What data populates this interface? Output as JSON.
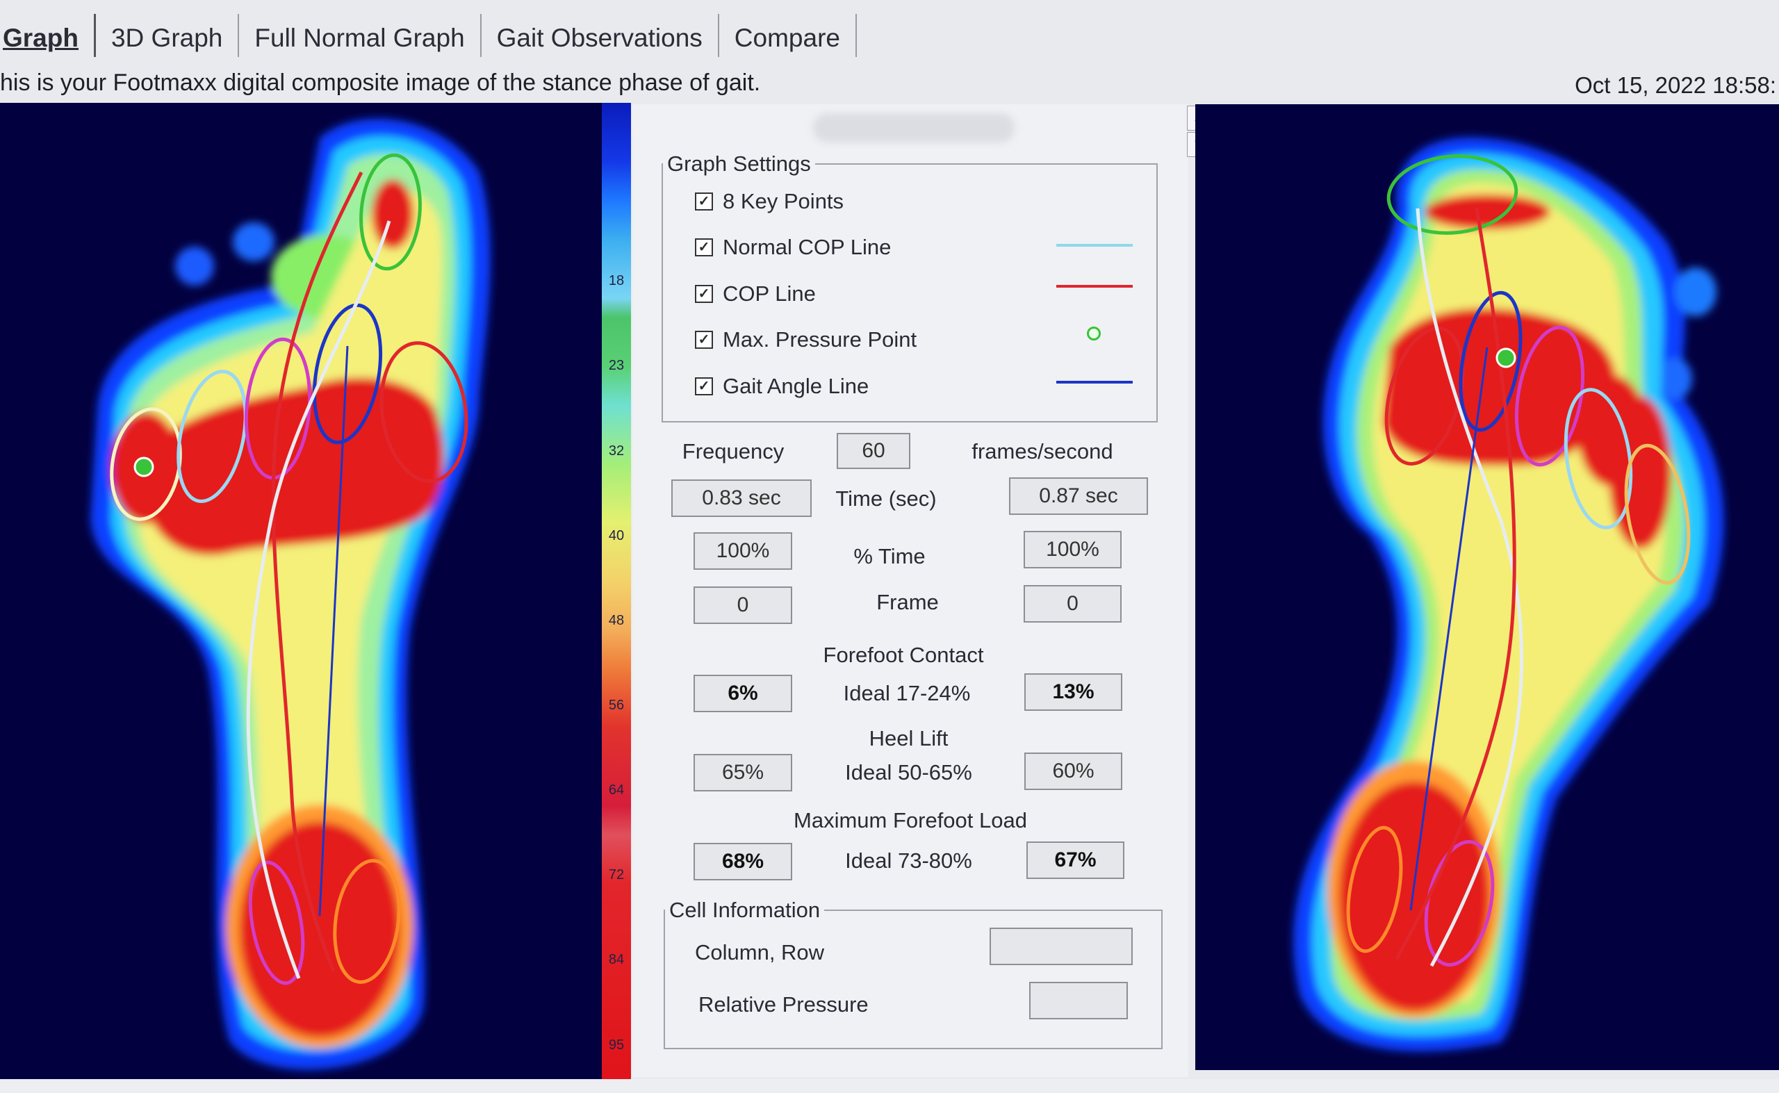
{
  "tabs": [
    "Graph",
    "3D Graph",
    "Full Normal Graph",
    "Gait Observations",
    "Compare"
  ],
  "subtitle": "his is your Footmaxx digital composite image of the stance phase of gait.",
  "datetime": "Oct 15, 2022 18:58:",
  "legend_ticks": [
    "18",
    "23",
    "32",
    "40",
    "48",
    "56",
    "64",
    "72",
    "84",
    "95"
  ],
  "graph_settings": {
    "title": "Graph Settings",
    "items": [
      {
        "label": "8 Key Points",
        "checked": true
      },
      {
        "label": "Normal COP Line",
        "checked": true,
        "color": "#8fd8ec"
      },
      {
        "label": "COP Line",
        "checked": true,
        "color": "#e0262c"
      },
      {
        "label": "Max. Pressure Point",
        "checked": true,
        "color": "#3ac23a"
      },
      {
        "label": "Gait Angle Line",
        "checked": true,
        "color": "#1c35c8"
      }
    ]
  },
  "frequency": {
    "label": "Frequency",
    "value": "60",
    "unit": "frames/second"
  },
  "time": {
    "label": "Time (sec)",
    "left": "0.83 sec",
    "right": "0.87 sec"
  },
  "pct_time": {
    "label": "% Time",
    "left": "100%",
    "right": "100%"
  },
  "frame": {
    "label": "Frame",
    "left": "0",
    "right": "0"
  },
  "forefoot_contact": {
    "label": "Forefoot Contact",
    "ideal": "Ideal 17-24%",
    "left": "6%",
    "right": "13%"
  },
  "heel_lift": {
    "label": "Heel Lift",
    "ideal": "Ideal 50-65%",
    "left": "65%",
    "right": "60%"
  },
  "max_forefoot_load": {
    "label": "Maximum Forefoot Load",
    "ideal": "Ideal 73-80%",
    "left": "68%",
    "right": "67%"
  },
  "cell_info": {
    "title": "Cell Information",
    "col_row_label": "Column, Row",
    "col_row_value": "",
    "rel_pressure_label": "Relative Pressure",
    "rel_pressure_value": ""
  },
  "colors": {
    "background": "#03003f",
    "high_pressure": "#e41f1f",
    "cop_line": "#e0262c",
    "normal_cop": "#8fd8ec",
    "gait_angle": "#1c35c8"
  }
}
